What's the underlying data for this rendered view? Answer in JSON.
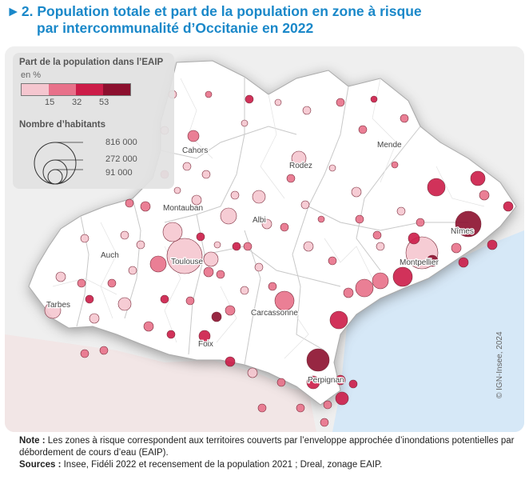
{
  "title": {
    "marker": "►",
    "line1": "2. Population totale et part de la population en zone à risque",
    "line2": "par intercommunalité d’Occitanie en 2022"
  },
  "legend": {
    "share_title": "Part de la population dans l’EAIP",
    "share_unit": "en %",
    "share_breaks": [
      "15",
      "32",
      "53"
    ],
    "share_colors": [
      "#f5c6cf",
      "#e8718a",
      "#cc1c48",
      "#8c0f2e"
    ],
    "size_title": "Nombre d’habitants",
    "size_values": [
      "816 000",
      "272 000",
      "91 000"
    ]
  },
  "map": {
    "sea_color": "#d6e8f7",
    "land_color": "#ffffff",
    "outside_color": "#f2e6e6",
    "cities": [
      {
        "name": "Cahors"
      },
      {
        "name": "Rodez"
      },
      {
        "name": "Mende"
      },
      {
        "name": "Montauban"
      },
      {
        "name": "Albi"
      },
      {
        "name": "Nîmes"
      },
      {
        "name": "Auch"
      },
      {
        "name": "Toulouse"
      },
      {
        "name": "Montpellier"
      },
      {
        "name": "Tarbes"
      },
      {
        "name": "Carcassonne"
      },
      {
        "name": "Foix"
      },
      {
        "name": "Perpignan"
      }
    ]
  },
  "credit": "© IGN-Insee, 2024",
  "note": {
    "note_label": "Note :",
    "note_text": " Les zones à risque correspondent aux territoires couverts par l’enveloppe approchée d’inondations potentielles par débordement de cours d’eau (EAIP).",
    "sources_label": "Sources :",
    "sources_text": " Insee, Fidéli 2022 et recensement de la population 2021 ; Dreal, zonage EAIP."
  }
}
